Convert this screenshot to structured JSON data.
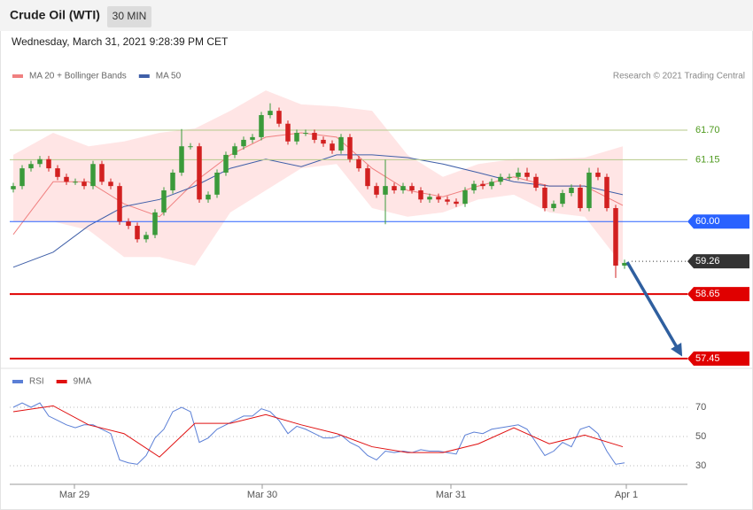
{
  "chart_data": {
    "type": "candlestick",
    "title": "Crude Oil (WTI)",
    "interval": "30 MIN",
    "subtitle": "Wednesday, March 31, 2021 9:28:39 PM CET",
    "credit": "Research © 2021 Trading Central",
    "up_color": "#3a9a3a",
    "down_color": "#d22020",
    "open": [
      60.6,
      60.66,
      60.99,
      61.07,
      61.16,
      60.99,
      60.83,
      60.74,
      60.74,
      60.66,
      61.07,
      60.74,
      60.66,
      60.0,
      59.92,
      59.67,
      59.75,
      60.17,
      60.58,
      60.91,
      61.4,
      61.4,
      60.41,
      60.5,
      60.91,
      61.24,
      61.4,
      61.52,
      61.57,
      61.98,
      62.06,
      61.82,
      61.49,
      61.65,
      61.65,
      61.52,
      61.45,
      61.32,
      61.57,
      61.16,
      60.99,
      60.66,
      60.5,
      60.66,
      60.58,
      60.66,
      60.58,
      60.41,
      60.46,
      60.41,
      60.37,
      60.33,
      60.58,
      60.7,
      60.66,
      60.74,
      60.83,
      60.83,
      60.91,
      60.83,
      60.63,
      60.25,
      60.33,
      60.53,
      60.63,
      60.25,
      60.91,
      60.83,
      60.25,
      59.18
    ],
    "high": [
      60.72,
      61.05,
      61.13,
      61.22,
      61.22,
      61.05,
      60.89,
      60.8,
      60.8,
      61.13,
      61.13,
      60.8,
      60.72,
      60.06,
      59.98,
      59.81,
      60.23,
      60.64,
      60.97,
      61.72,
      61.46,
      61.46,
      60.56,
      60.97,
      61.3,
      61.46,
      61.58,
      61.63,
      62.04,
      62.2,
      62.12,
      61.88,
      61.71,
      61.71,
      61.71,
      61.58,
      61.51,
      61.63,
      61.63,
      61.22,
      61.05,
      60.72,
      61.15,
      60.72,
      60.72,
      60.72,
      60.64,
      60.52,
      60.52,
      60.47,
      60.43,
      60.64,
      60.76,
      60.76,
      60.8,
      60.89,
      60.89,
      61.0,
      61.0,
      60.89,
      60.69,
      60.39,
      60.59,
      60.69,
      60.69,
      61.0,
      61.0,
      60.89,
      60.31,
      59.29
    ],
    "low": [
      60.54,
      60.6,
      60.93,
      61.01,
      60.93,
      60.77,
      60.68,
      60.68,
      60.6,
      60.6,
      60.68,
      60.6,
      59.94,
      59.86,
      59.61,
      59.61,
      59.69,
      60.11,
      60.52,
      60.85,
      61.34,
      60.35,
      60.35,
      60.44,
      60.85,
      61.18,
      61.34,
      61.46,
      61.51,
      61.92,
      61.76,
      61.43,
      61.43,
      61.59,
      61.46,
      61.39,
      61.26,
      61.26,
      61.1,
      60.93,
      60.6,
      60.44,
      59.95,
      60.52,
      60.52,
      60.52,
      60.35,
      60.35,
      60.35,
      60.31,
      60.27,
      60.27,
      60.52,
      60.6,
      60.6,
      60.68,
      60.77,
      60.77,
      60.77,
      60.57,
      60.19,
      60.19,
      60.27,
      60.47,
      60.19,
      60.19,
      60.77,
      60.19,
      58.95,
      59.12
    ],
    "close": [
      60.66,
      60.99,
      61.07,
      61.16,
      60.99,
      60.83,
      60.74,
      60.74,
      60.66,
      61.07,
      60.74,
      60.66,
      60.0,
      59.92,
      59.67,
      59.75,
      60.17,
      60.58,
      60.91,
      61.4,
      61.4,
      60.41,
      60.5,
      60.91,
      61.24,
      61.4,
      61.52,
      61.57,
      61.98,
      62.06,
      61.82,
      61.49,
      61.65,
      61.65,
      61.52,
      61.45,
      61.32,
      61.57,
      61.16,
      60.99,
      60.66,
      60.5,
      60.66,
      60.58,
      60.66,
      60.58,
      60.41,
      60.46,
      60.41,
      60.37,
      60.33,
      60.58,
      60.7,
      60.66,
      60.74,
      60.83,
      60.83,
      60.91,
      60.83,
      60.63,
      60.25,
      60.33,
      60.53,
      60.63,
      60.25,
      60.91,
      60.83,
      60.25,
      59.18,
      59.23
    ],
    "xlim": [
      0,
      76.5
    ],
    "xticks": [
      {
        "value": 7.3,
        "label": "Mar 29"
      },
      {
        "value": 28.5,
        "label": "Mar 30"
      },
      {
        "value": 49.8,
        "label": "Mar 31"
      },
      {
        "value": 69.6,
        "label": "Apr 1"
      }
    ],
    "ylim": [
      57.3,
      62.55
    ],
    "indicator_x": [
      0.4,
      4.9,
      8.9,
      12.9,
      16.9,
      20.9,
      24.9,
      28.9,
      32.9,
      36.9,
      40.9,
      44.9,
      48.9,
      52.9,
      56.9,
      60.9,
      64.9,
      69.2
    ],
    "series": [
      {
        "name": "MA 20 + Bollinger Bands",
        "color": "#f08080",
        "values": [
          59.76,
          60.74,
          60.74,
          60.33,
          60.09,
          60.74,
          61.24,
          61.57,
          61.65,
          61.57,
          60.99,
          60.58,
          60.46,
          60.66,
          60.83,
          60.66,
          60.66,
          60.3
        ],
        "upper": [
          61.24,
          61.65,
          61.4,
          61.49,
          61.65,
          61.73,
          62.06,
          62.44,
          62.18,
          62.14,
          62.06,
          61.24,
          60.83,
          61.07,
          61.16,
          61.16,
          61.19,
          61.4
        ],
        "lower": [
          60.0,
          60.0,
          59.84,
          59.34,
          59.34,
          59.18,
          60.17,
          60.58,
          60.99,
          61.07,
          60.25,
          60.09,
          60.17,
          60.41,
          60.5,
          60.17,
          60.09,
          59.18
        ]
      },
      {
        "name": "MA 50",
        "color": "#3f5fa8",
        "values": [
          59.15,
          59.43,
          59.92,
          60.28,
          60.41,
          60.66,
          60.99,
          61.16,
          61.02,
          61.24,
          61.24,
          61.19,
          61.07,
          60.91,
          60.74,
          60.66,
          60.66,
          60.5
        ]
      }
    ],
    "levels": [
      {
        "value": 61.7,
        "label": "61.70",
        "line_color": "#b5c98a",
        "text_color": "#4f9a1f",
        "tag_color": null,
        "width": 1,
        "dash": false
      },
      {
        "value": 61.15,
        "line_color": "#b5c98a",
        "text_color": "#4f9a1f",
        "tag_color": null,
        "width": 1,
        "dash": false
      },
      {
        "value": 60,
        "label": "60.00",
        "line_color": "#2962ff",
        "text_color": "#ffffff",
        "tag_color": "#2962ff",
        "width": 1,
        "dash": false
      },
      {
        "value": 59.26,
        "line_color": "#333333",
        "text_color": "#ffffff",
        "tag_color": "#333333",
        "width": 1,
        "dash": true
      },
      {
        "value": 58.65,
        "line_color": "#e00000",
        "text_color": "#ffffff",
        "tag_color": "#e00000",
        "width": 2,
        "dash": false
      },
      {
        "value": 57.45,
        "line_color": "#e00000",
        "text_color": "#ffffff",
        "tag_color": "#e00000",
        "width": 2,
        "dash": false
      }
    ],
    "rsi": {
      "ylim": [
        18.5,
        94
      ],
      "yticks": [
        30,
        50,
        70
      ],
      "series": [
        {
          "name": "RSI",
          "color": "#5b7fd6",
          "values": [
            70,
            73,
            70,
            73,
            64,
            61,
            58,
            56,
            58,
            58,
            55,
            52,
            34,
            32,
            31,
            37,
            49,
            55,
            67,
            70,
            67,
            46,
            49,
            55,
            58,
            61,
            64,
            64,
            69,
            67,
            61,
            52,
            57,
            55,
            52,
            49,
            49,
            51,
            46,
            43,
            37,
            34,
            40,
            39,
            40,
            39,
            41,
            40,
            40,
            39,
            38,
            51,
            53,
            52,
            55,
            56,
            57,
            58,
            55,
            46,
            37,
            40,
            46,
            43,
            55,
            57,
            52,
            40,
            31,
            32
          ]
        },
        {
          "name": "9MA",
          "color": "#e01010",
          "values": [
            67,
            71,
            58,
            52,
            36,
            59,
            59,
            65,
            58,
            52,
            43,
            39,
            39,
            45,
            56,
            45,
            51,
            43
          ]
        }
      ]
    }
  }
}
